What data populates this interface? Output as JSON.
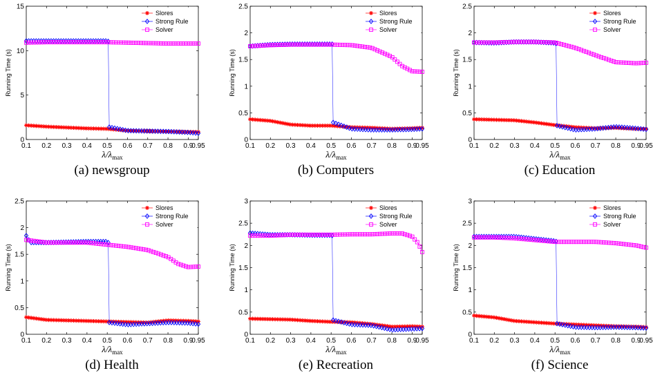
{
  "chart_data": [
    {
      "type": "line",
      "caption": "(a)  newsgroup",
      "ylabel": "Running Time (s)",
      "xlabel": "λ/λmax",
      "xlim": [
        0.1,
        0.95
      ],
      "ylim": [
        0,
        15
      ],
      "yticks": [
        0,
        5,
        10,
        15
      ],
      "xticks": [
        0.1,
        0.2,
        0.3,
        0.4,
        0.5,
        0.6,
        0.7,
        0.8,
        0.9,
        0.95
      ],
      "legend": "top-right",
      "series": [
        {
          "name": "Slores",
          "color": "#ff0000",
          "marker": "star",
          "x": [
            0.1,
            0.2,
            0.3,
            0.4,
            0.5,
            0.6,
            0.7,
            0.8,
            0.9,
            0.95
          ],
          "y": [
            1.6,
            1.45,
            1.35,
            1.25,
            1.2,
            1.0,
            0.95,
            0.9,
            0.85,
            0.85
          ]
        },
        {
          "name": "Strong Rule",
          "color": "#0000ff",
          "marker": "diamond",
          "x": [
            0.1,
            0.2,
            0.3,
            0.4,
            0.5,
            0.505,
            0.51,
            0.6,
            0.7,
            0.8,
            0.9,
            0.95
          ],
          "y": [
            11.1,
            11.1,
            11.1,
            11.1,
            11.1,
            11.05,
            1.4,
            1.0,
            0.95,
            0.9,
            0.8,
            0.7
          ]
        },
        {
          "name": "Solver",
          "color": "#ff00ff",
          "marker": "square",
          "x": [
            0.1,
            0.2,
            0.3,
            0.4,
            0.5,
            0.6,
            0.7,
            0.8,
            0.9,
            0.95
          ],
          "y": [
            10.9,
            10.95,
            10.95,
            10.95,
            10.95,
            10.9,
            10.85,
            10.8,
            10.8,
            10.8
          ]
        }
      ]
    },
    {
      "type": "line",
      "caption": "(b)  Computers",
      "ylabel": "Running Time (s)",
      "xlabel": "λ/λmax",
      "xlim": [
        0.1,
        0.95
      ],
      "ylim": [
        0,
        2.5
      ],
      "yticks": [
        0,
        0.5,
        1,
        1.5,
        2,
        2.5
      ],
      "xticks": [
        0.1,
        0.2,
        0.3,
        0.4,
        0.5,
        0.6,
        0.7,
        0.8,
        0.9,
        0.95
      ],
      "legend": "top-right",
      "series": [
        {
          "name": "Slores",
          "color": "#ff0000",
          "marker": "star",
          "x": [
            0.1,
            0.2,
            0.3,
            0.4,
            0.5,
            0.6,
            0.7,
            0.8,
            0.9,
            0.95
          ],
          "y": [
            0.38,
            0.35,
            0.28,
            0.26,
            0.26,
            0.23,
            0.22,
            0.2,
            0.21,
            0.22
          ]
        },
        {
          "name": "Strong Rule",
          "color": "#0000ff",
          "marker": "diamond",
          "x": [
            0.1,
            0.2,
            0.3,
            0.4,
            0.5,
            0.505,
            0.51,
            0.6,
            0.7,
            0.8,
            0.9,
            0.95
          ],
          "y": [
            1.75,
            1.78,
            1.79,
            1.79,
            1.79,
            1.79,
            0.32,
            0.2,
            0.18,
            0.18,
            0.19,
            0.2
          ]
        },
        {
          "name": "Solver",
          "color": "#ff00ff",
          "marker": "square",
          "x": [
            0.1,
            0.2,
            0.3,
            0.4,
            0.5,
            0.6,
            0.7,
            0.8,
            0.85,
            0.9,
            0.95
          ],
          "y": [
            1.75,
            1.77,
            1.78,
            1.78,
            1.78,
            1.77,
            1.72,
            1.55,
            1.38,
            1.28,
            1.27
          ]
        }
      ]
    },
    {
      "type": "line",
      "caption": "(c)  Education",
      "ylabel": "Running Time (s)",
      "xlabel": "λ/λmax",
      "xlim": [
        0.1,
        0.95
      ],
      "ylim": [
        0,
        2.5
      ],
      "yticks": [
        0,
        0.5,
        1,
        1.5,
        2,
        2.5
      ],
      "xticks": [
        0.1,
        0.2,
        0.3,
        0.4,
        0.5,
        0.6,
        0.7,
        0.8,
        0.9,
        0.95
      ],
      "legend": "top-right",
      "series": [
        {
          "name": "Slores",
          "color": "#ff0000",
          "marker": "star",
          "x": [
            0.1,
            0.2,
            0.3,
            0.4,
            0.5,
            0.6,
            0.7,
            0.8,
            0.9,
            0.95
          ],
          "y": [
            0.38,
            0.37,
            0.36,
            0.32,
            0.27,
            0.23,
            0.21,
            0.22,
            0.2,
            0.2
          ]
        },
        {
          "name": "Strong Rule",
          "color": "#0000ff",
          "marker": "diamond",
          "x": [
            0.1,
            0.2,
            0.3,
            0.4,
            0.5,
            0.505,
            0.51,
            0.6,
            0.7,
            0.8,
            0.9,
            0.95
          ],
          "y": [
            1.82,
            1.81,
            1.83,
            1.83,
            1.81,
            1.8,
            0.26,
            0.18,
            0.2,
            0.24,
            0.21,
            0.19
          ]
        },
        {
          "name": "Solver",
          "color": "#ff00ff",
          "marker": "square",
          "x": [
            0.1,
            0.2,
            0.3,
            0.4,
            0.5,
            0.6,
            0.7,
            0.8,
            0.9,
            0.95
          ],
          "y": [
            1.82,
            1.82,
            1.83,
            1.83,
            1.82,
            1.72,
            1.58,
            1.45,
            1.43,
            1.44
          ]
        }
      ]
    },
    {
      "type": "line",
      "caption": "(d)  Health",
      "ylabel": "Running Time (s)",
      "xlabel": "λ/λmax",
      "xlim": [
        0.1,
        0.95
      ],
      "ylim": [
        0,
        2.5
      ],
      "yticks": [
        0,
        0.5,
        1,
        1.5,
        2,
        2.5
      ],
      "xticks": [
        0.1,
        0.2,
        0.3,
        0.4,
        0.5,
        0.6,
        0.7,
        0.8,
        0.9,
        0.95
      ],
      "legend": "top-right",
      "series": [
        {
          "name": "Slores",
          "color": "#ff0000",
          "marker": "star",
          "x": [
            0.1,
            0.2,
            0.3,
            0.4,
            0.5,
            0.6,
            0.7,
            0.8,
            0.9,
            0.95
          ],
          "y": [
            0.32,
            0.27,
            0.26,
            0.25,
            0.24,
            0.23,
            0.22,
            0.26,
            0.25,
            0.24
          ]
        },
        {
          "name": "Strong Rule",
          "color": "#0000ff",
          "marker": "diamond",
          "x": [
            0.1,
            0.12,
            0.2,
            0.3,
            0.4,
            0.5,
            0.505,
            0.51,
            0.6,
            0.7,
            0.8,
            0.9,
            0.95
          ],
          "y": [
            1.85,
            1.72,
            1.72,
            1.73,
            1.74,
            1.74,
            1.72,
            0.22,
            0.18,
            0.2,
            0.22,
            0.21,
            0.19
          ]
        },
        {
          "name": "Solver",
          "color": "#ff00ff",
          "marker": "square",
          "x": [
            0.1,
            0.2,
            0.3,
            0.4,
            0.5,
            0.6,
            0.7,
            0.8,
            0.85,
            0.9,
            0.95
          ],
          "y": [
            1.77,
            1.72,
            1.72,
            1.72,
            1.68,
            1.64,
            1.58,
            1.45,
            1.32,
            1.26,
            1.27
          ]
        }
      ]
    },
    {
      "type": "line",
      "caption": "(e)  Recreation",
      "ylabel": "Running Time (s)",
      "xlabel": "λ/λmax",
      "xlim": [
        0.1,
        0.95
      ],
      "ylim": [
        0,
        3
      ],
      "yticks": [
        0,
        0.5,
        1,
        1.5,
        2,
        2.5,
        3
      ],
      "xticks": [
        0.1,
        0.2,
        0.3,
        0.4,
        0.5,
        0.6,
        0.7,
        0.8,
        0.9,
        0.95
      ],
      "legend": "top-right",
      "series": [
        {
          "name": "Slores",
          "color": "#ff0000",
          "marker": "star",
          "x": [
            0.1,
            0.2,
            0.3,
            0.4,
            0.5,
            0.6,
            0.7,
            0.8,
            0.9,
            0.95
          ],
          "y": [
            0.35,
            0.34,
            0.33,
            0.3,
            0.28,
            0.27,
            0.23,
            0.17,
            0.18,
            0.17
          ]
        },
        {
          "name": "Strong Rule",
          "color": "#0000ff",
          "marker": "diamond",
          "x": [
            0.1,
            0.2,
            0.3,
            0.4,
            0.5,
            0.505,
            0.51,
            0.6,
            0.7,
            0.8,
            0.9,
            0.95
          ],
          "y": [
            2.28,
            2.24,
            2.24,
            2.23,
            2.23,
            2.22,
            0.32,
            0.22,
            0.2,
            0.1,
            0.12,
            0.13
          ]
        },
        {
          "name": "Solver",
          "color": "#ff00ff",
          "marker": "square",
          "x": [
            0.1,
            0.2,
            0.3,
            0.4,
            0.5,
            0.6,
            0.7,
            0.8,
            0.85,
            0.9,
            0.93,
            0.95
          ],
          "y": [
            2.22,
            2.22,
            2.24,
            2.24,
            2.24,
            2.25,
            2.25,
            2.27,
            2.27,
            2.2,
            2.05,
            1.85
          ]
        }
      ]
    },
    {
      "type": "line",
      "caption": "(f)  Science",
      "ylabel": "Running Time (s)",
      "xlabel": "λ/λmax",
      "xlim": [
        0.1,
        0.95
      ],
      "ylim": [
        0,
        3
      ],
      "yticks": [
        0,
        0.5,
        1,
        1.5,
        2,
        2.5,
        3
      ],
      "xticks": [
        0.1,
        0.2,
        0.3,
        0.4,
        0.5,
        0.6,
        0.7,
        0.8,
        0.9,
        0.95
      ],
      "legend": "top-right",
      "series": [
        {
          "name": "Slores",
          "color": "#ff0000",
          "marker": "star",
          "x": [
            0.1,
            0.2,
            0.3,
            0.4,
            0.5,
            0.6,
            0.7,
            0.8,
            0.9,
            0.95
          ],
          "y": [
            0.42,
            0.38,
            0.3,
            0.27,
            0.24,
            0.22,
            0.2,
            0.18,
            0.17,
            0.16
          ]
        },
        {
          "name": "Strong Rule",
          "color": "#0000ff",
          "marker": "diamond",
          "x": [
            0.1,
            0.2,
            0.3,
            0.4,
            0.5,
            0.505,
            0.51,
            0.6,
            0.7,
            0.8,
            0.9,
            0.95
          ],
          "y": [
            2.2,
            2.2,
            2.2,
            2.15,
            2.1,
            2.09,
            0.24,
            0.16,
            0.15,
            0.16,
            0.15,
            0.14
          ]
        },
        {
          "name": "Solver",
          "color": "#ff00ff",
          "marker": "square",
          "x": [
            0.1,
            0.2,
            0.3,
            0.4,
            0.5,
            0.6,
            0.7,
            0.8,
            0.9,
            0.95
          ],
          "y": [
            2.18,
            2.18,
            2.16,
            2.12,
            2.08,
            2.08,
            2.08,
            2.05,
            2.0,
            1.95
          ]
        }
      ]
    }
  ]
}
